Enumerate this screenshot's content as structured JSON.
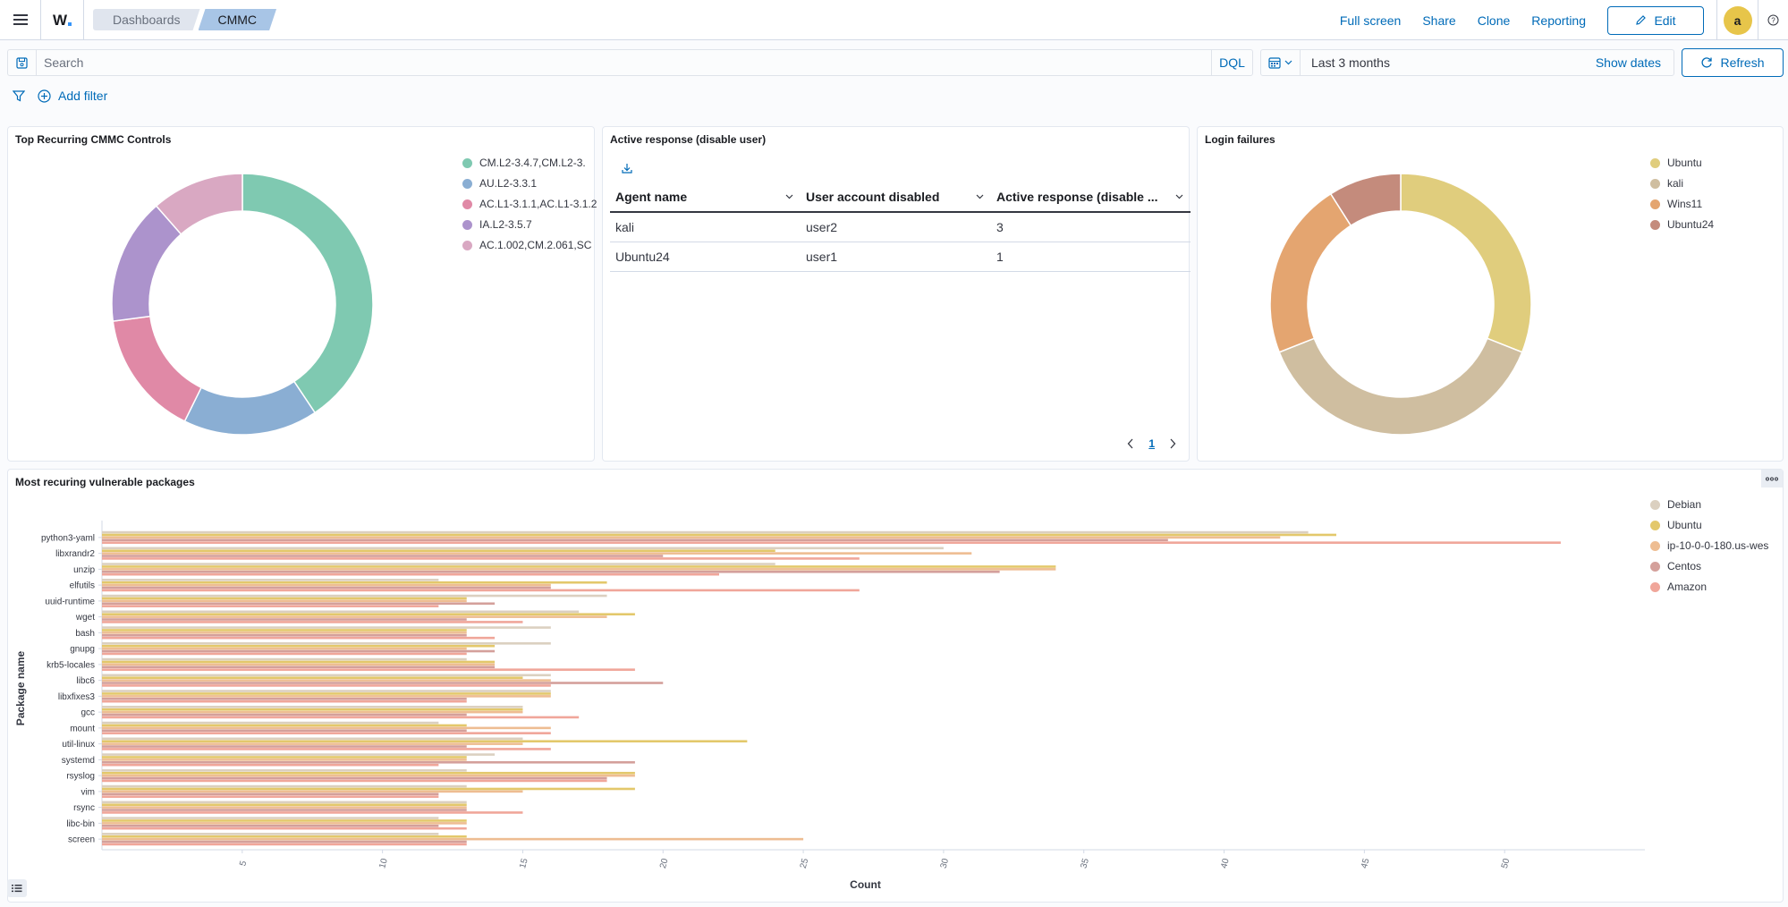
{
  "header": {
    "breadcrumbs": [
      "Dashboards",
      "CMMC"
    ],
    "links": [
      "Full screen",
      "Share",
      "Clone",
      "Reporting"
    ],
    "edit_label": "Edit",
    "avatar_initial": "a"
  },
  "query": {
    "search_placeholder": "Search",
    "language": "DQL",
    "date_range": "Last 3 months",
    "show_dates": "Show dates",
    "refresh": "Refresh"
  },
  "filters": {
    "add_filter": "Add filter"
  },
  "panels": {
    "cmmc": {
      "title": "Top Recurring CMMC Controls",
      "legend": [
        "CM.L2-3.4.7,CM.L2-3.",
        "AU.L2-3.3.1",
        "AC.L1-3.1.1,AC.L1-3.1.2,",
        "IA.L2-3.5.7",
        "AC.1.002,CM.2.061,SC"
      ]
    },
    "active_response": {
      "title": "Active response (disable user)",
      "columns": [
        "Agent name",
        "User account disabled",
        "Active response (disable ..."
      ],
      "rows": [
        [
          "kali",
          "user2",
          "3"
        ],
        [
          "Ubuntu24",
          "user1",
          "1"
        ]
      ],
      "page": "1"
    },
    "login": {
      "title": "Login failures",
      "legend": [
        "Ubuntu",
        "kali",
        "Wins11",
        "Ubuntu24"
      ]
    },
    "vuln": {
      "title": "Most recuring vulnerable packages",
      "legend": [
        "Debian",
        "Ubuntu",
        "ip-10-0-0-180.us-wes",
        "Centos",
        "Amazon"
      ]
    }
  },
  "chart_data": [
    {
      "type": "pie",
      "title": "Top Recurring CMMC Controls",
      "labels": [
        "CM.L2-3.4.7,CM.L2-3.",
        "AU.L2-3.3.1",
        "AC.L1-3.1.1,AC.L1-3.1.2,",
        "IA.L2-3.5.7",
        "AC.1.002,CM.2.061,SC"
      ],
      "values": [
        39,
        16,
        15,
        15,
        11
      ],
      "colors": [
        "#7fc9b1",
        "#8aaed3",
        "#e089a6",
        "#ac93cc",
        "#d9a8c2"
      ],
      "donut": true
    },
    {
      "type": "pie",
      "title": "Login failures",
      "labels": [
        "Ubuntu",
        "kali",
        "Wins11",
        "Ubuntu24"
      ],
      "values": [
        31,
        38,
        22,
        9
      ],
      "colors": [
        "#e0cd7d",
        "#cfbea0",
        "#e4a570",
        "#c48b7c"
      ],
      "donut": true
    },
    {
      "type": "bar",
      "orientation": "horizontal",
      "title": "Most recuring vulnerable packages",
      "xlabel": "Count",
      "ylabel": "Package name",
      "xlim": [
        0,
        55
      ],
      "xticks": [
        5,
        10,
        15,
        20,
        25,
        30,
        35,
        40,
        45,
        50
      ],
      "categories": [
        "python3-yaml",
        "libxrandr2",
        "unzip",
        "elfutils",
        "uuid-runtime",
        "wget",
        "bash",
        "gnupg",
        "krb5-locales",
        "libc6",
        "libxfixes3",
        "gcc",
        "mount",
        "util-linux",
        "systemd",
        "rsyslog",
        "vim",
        "rsync",
        "libc-bin",
        "screen"
      ],
      "series": [
        {
          "name": "Debian",
          "color": "#dbd0c0",
          "values": [
            43,
            30,
            24,
            12,
            18,
            17,
            16,
            16,
            13,
            16,
            16,
            15,
            12,
            15,
            14,
            13,
            13,
            13,
            12,
            12
          ]
        },
        {
          "name": "Ubuntu",
          "color": "#e3c86b",
          "values": [
            44,
            24,
            34,
            18,
            13,
            19,
            13,
            14,
            14,
            15,
            16,
            15,
            13,
            23,
            13,
            19,
            19,
            13,
            13,
            13
          ]
        },
        {
          "name": "ip-10-0-0-180.us-wes",
          "color": "#eebd92",
          "values": [
            42,
            31,
            34,
            16,
            13,
            18,
            13,
            13,
            14,
            16,
            16,
            15,
            16,
            15,
            13,
            19,
            15,
            13,
            13,
            25
          ]
        },
        {
          "name": "Centos",
          "color": "#d4a09b",
          "values": [
            38,
            20,
            32,
            16,
            14,
            13,
            13,
            14,
            14,
            20,
            13,
            13,
            13,
            13,
            19,
            18,
            12,
            13,
            12,
            13
          ]
        },
        {
          "name": "Amazon",
          "color": "#f0a69a",
          "values": [
            52,
            27,
            22,
            27,
            12,
            15,
            14,
            13,
            19,
            16,
            13,
            17,
            16,
            16,
            12,
            18,
            12,
            15,
            13,
            13
          ]
        }
      ]
    }
  ]
}
